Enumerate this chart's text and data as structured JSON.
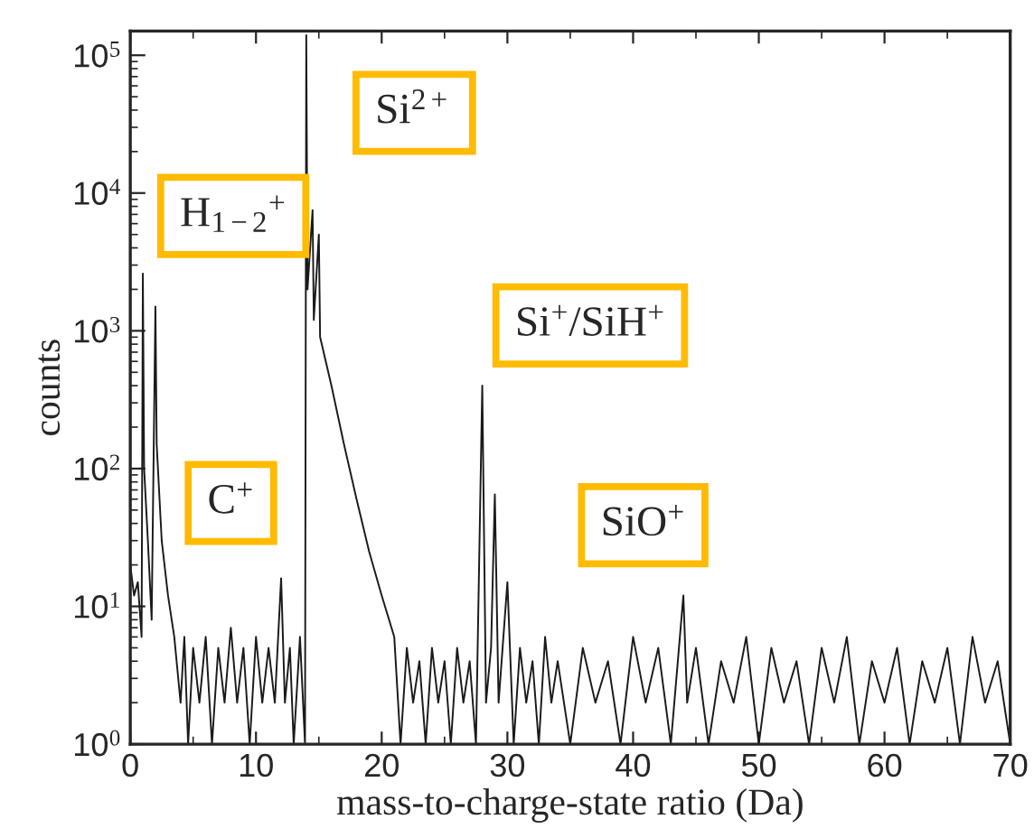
{
  "chart_data": {
    "type": "line",
    "xlabel": "mass-to-charge-state ratio (Da)",
    "ylabel": "counts",
    "log": "y",
    "xlim": [
      0,
      70
    ],
    "ylim": [
      1,
      150000
    ],
    "xticks": [
      0,
      10,
      20,
      30,
      40,
      50,
      60,
      70
    ],
    "yticks": [
      {
        "value": 1,
        "label": "10$^{0}$"
      },
      {
        "value": 10,
        "label": "10$^{1}$"
      },
      {
        "value": 100,
        "label": "10$^{2}$"
      },
      {
        "value": 1000,
        "label": "10$^{3}$"
      },
      {
        "value": 10000,
        "label": "10$^{4}$"
      },
      {
        "value": 100000,
        "label": "10$^{5}$"
      }
    ],
    "grid": false,
    "marker": "none",
    "line_style": "solid",
    "annotations": [
      {
        "text": "H$_{1−2}$$^{+}$",
        "x": 1,
        "y": 2600
      },
      {
        "text": "C$^{+}$",
        "x": 12,
        "y": 16
      },
      {
        "text": "Si$^{2+}$",
        "x": 14,
        "y": 140000
      },
      {
        "text": "Si$^{+}$/SiH$^{+}$",
        "x": 28,
        "y": 400
      },
      {
        "text": "SiO$^{+}$",
        "x": 44,
        "y": 12
      }
    ],
    "series": [
      {
        "color": "#1a1a1a",
        "x": [
          0,
          0.3,
          0.6,
          0.9,
          1.0,
          1.1,
          1.4,
          1.7,
          2.0,
          2.1,
          2.5,
          3,
          3.5,
          4,
          4.3,
          4.6,
          5,
          5.5,
          6,
          6.5,
          7,
          7.5,
          8,
          8.5,
          9,
          9.5,
          10,
          10.5,
          11,
          11.5,
          12,
          12.3,
          12.7,
          13,
          13.5,
          13.9,
          14.0,
          14.1,
          14.5,
          14.6,
          15.0,
          15.1,
          16,
          17,
          18,
          19,
          20,
          21,
          21.5,
          22,
          22.5,
          23,
          23.5,
          24,
          24.5,
          25,
          25.5,
          26,
          26.5,
          27,
          27.5,
          28,
          28.3,
          28.7,
          29,
          29.3,
          30,
          30.5,
          31,
          31.5,
          32,
          32.5,
          33,
          33.5,
          34,
          35,
          36,
          37,
          38,
          39,
          40,
          41,
          42,
          43,
          44,
          44.3,
          45,
          46,
          47,
          48,
          49,
          50,
          51,
          52,
          53,
          54,
          55,
          56,
          57,
          58,
          59,
          60,
          61,
          62,
          63,
          64,
          65,
          66,
          67,
          68,
          69,
          70
        ],
        "values": [
          20,
          12,
          15,
          6,
          2600,
          100,
          30,
          8,
          1500,
          150,
          30,
          12,
          6,
          2,
          6,
          1,
          5,
          2,
          6,
          1,
          5,
          2,
          7,
          2,
          5,
          1,
          6,
          2,
          5,
          2,
          16,
          2,
          5,
          1,
          6,
          1,
          140000,
          2000,
          7500,
          1200,
          5000,
          900,
          400,
          150,
          60,
          25,
          12,
          6,
          1,
          5,
          2,
          4,
          1,
          5,
          2,
          4,
          1,
          5,
          2,
          4,
          1,
          400,
          2,
          5,
          65,
          2,
          15,
          1,
          5,
          2,
          4,
          1,
          6,
          2,
          4,
          1,
          5,
          2,
          4,
          1,
          6,
          2,
          5,
          1,
          12,
          2,
          5,
          1,
          4,
          2,
          6,
          1,
          5,
          2,
          4,
          1,
          5,
          2,
          6,
          1,
          4,
          2,
          5,
          1,
          4,
          2,
          5,
          1,
          6,
          2,
          4,
          1
        ]
      }
    ]
  }
}
